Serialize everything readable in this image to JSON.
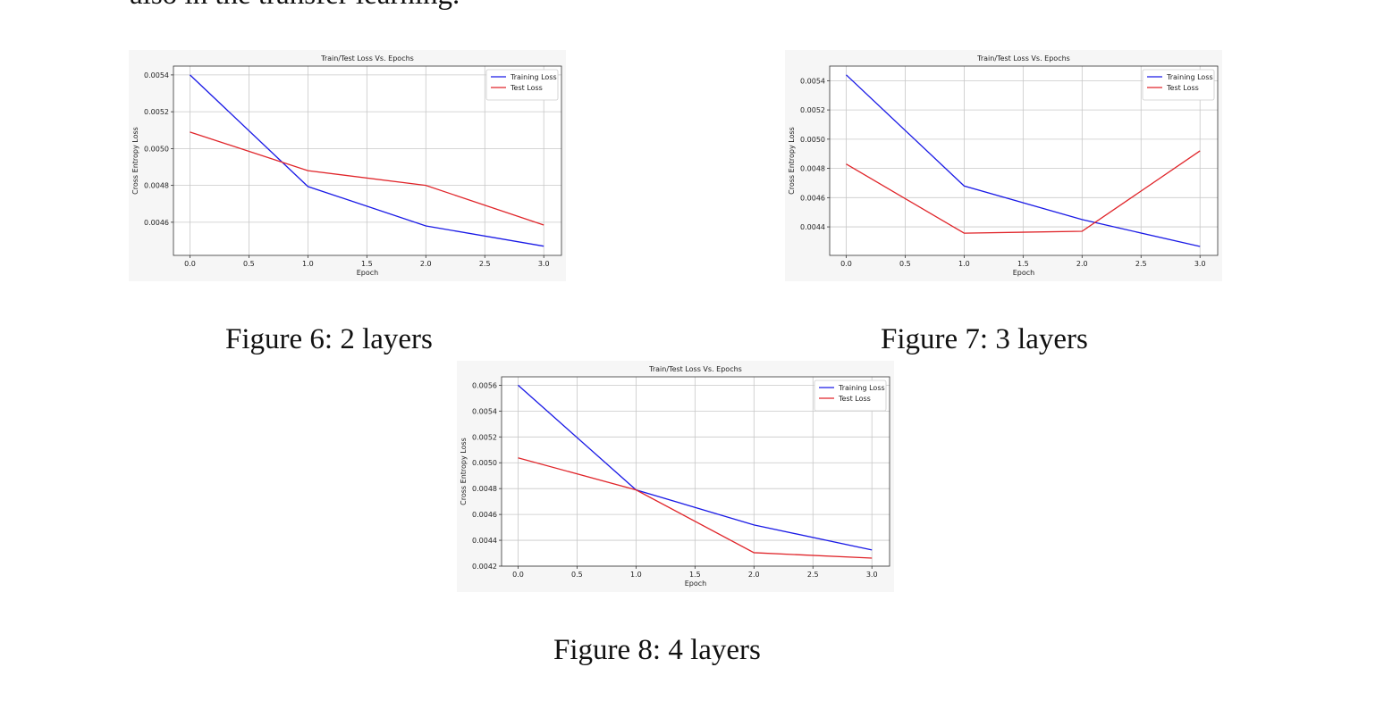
{
  "text": "also in the transfer learning.",
  "chart_data": [
    {
      "type": "line",
      "title": "Train/Test Loss Vs. Epochs",
      "xlabel": "Epoch",
      "ylabel": "Cross Entropy Loss",
      "caption": "Figure 6: 2 layers",
      "grid": true,
      "legend": "upper right",
      "x": [
        0,
        1,
        2,
        3
      ],
      "xlim": [
        -0.14,
        3.15
      ],
      "ylim": [
        0.00442,
        0.005448
      ],
      "xticks": [
        {
          "value": 0,
          "label": "0.0"
        },
        0.5,
        {
          "value": 1,
          "label": "1.0"
        },
        1.5,
        {
          "value": 2,
          "label": "2.0"
        },
        2.5,
        {
          "value": 3,
          "label": "3.0"
        }
      ],
      "yticks": [
        0.0046,
        0.0048,
        {
          "value": 0.005,
          "label": "0.0050"
        },
        0.0052,
        0.0054
      ],
      "series": [
        {
          "name": "Training Loss",
          "color": "#1a1ae6",
          "values": [
            0.0054,
            0.004794,
            0.00458,
            0.00447
          ]
        },
        {
          "name": "Test Loss",
          "color": "#e0252a",
          "values": [
            0.00509,
            0.00488,
            0.0048,
            0.004585
          ]
        }
      ]
    },
    {
      "type": "line",
      "title": "Train/Test Loss Vs. Epochs",
      "xlabel": "Epoch",
      "ylabel": "Cross Entropy Loss",
      "caption": "Figure 7: 3 layers",
      "grid": true,
      "legend": "upper right",
      "x": [
        0,
        1,
        2,
        3
      ],
      "xlim": [
        -0.14,
        3.15
      ],
      "ylim": [
        0.004205,
        0.0055
      ],
      "xticks": [
        {
          "value": 0,
          "label": "0.0"
        },
        0.5,
        {
          "value": 1,
          "label": "1.0"
        },
        1.5,
        {
          "value": 2,
          "label": "2.0"
        },
        2.5,
        {
          "value": 3,
          "label": "3.0"
        }
      ],
      "yticks": [
        0.0044,
        0.0046,
        0.0048,
        {
          "value": 0.005,
          "label": "0.0050"
        },
        0.0052,
        0.0054
      ],
      "series": [
        {
          "name": "Training Loss",
          "color": "#1a1ae6",
          "values": [
            0.00544,
            0.00468,
            0.00445,
            0.004266
          ]
        },
        {
          "name": "Test Loss",
          "color": "#e0252a",
          "values": [
            0.00483,
            0.004357,
            0.00437,
            0.00492
          ]
        }
      ]
    },
    {
      "type": "line",
      "title": "Train/Test Loss Vs. Epochs",
      "xlabel": "Epoch",
      "ylabel": "Cross Entropy Loss",
      "caption": "Figure 8: 4 layers",
      "grid": true,
      "legend": "upper right",
      "x": [
        0,
        1,
        2,
        3
      ],
      "xlim": [
        -0.14,
        3.15
      ],
      "ylim": [
        0.0042,
        0.005665
      ],
      "xticks": [
        {
          "value": 0,
          "label": "0.0"
        },
        0.5,
        {
          "value": 1,
          "label": "1.0"
        },
        1.5,
        {
          "value": 2,
          "label": "2.0"
        },
        2.5,
        {
          "value": 3,
          "label": "3.0"
        }
      ],
      "yticks": [
        0.0042,
        0.0044,
        0.0046,
        0.0048,
        {
          "value": 0.005,
          "label": "0.0050"
        },
        0.0052,
        0.0054,
        0.0056
      ],
      "series": [
        {
          "name": "Training Loss",
          "color": "#1a1ae6",
          "values": [
            0.0056,
            0.00479,
            0.004519,
            0.004325
          ]
        },
        {
          "name": "Test Loss",
          "color": "#e0252a",
          "values": [
            0.005038,
            0.00479,
            0.004304,
            0.004262
          ]
        }
      ]
    }
  ]
}
